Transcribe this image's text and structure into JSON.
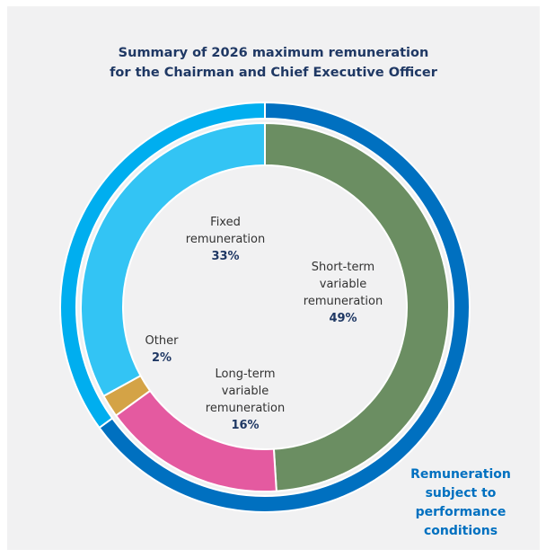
{
  "chart_data": {
    "type": "pie",
    "title_line1": "Summary of 2026 maximum remuneration",
    "title_line2": "for the Chairman and Chief Executive Officer",
    "inner_ring": [
      {
        "name_lines": [
          "Short-term",
          "variable",
          "remuneration"
        ],
        "value": 49,
        "pct_label": "49%",
        "color": "#6b8e62"
      },
      {
        "name_lines": [
          "Long-term",
          "variable",
          "remuneration"
        ],
        "value": 16,
        "pct_label": "16%",
        "color": "#e45aa0"
      },
      {
        "name_lines": [
          "Other"
        ],
        "value": 2,
        "pct_label": "2%",
        "color": "#d4a346"
      },
      {
        "name_lines": [
          "Fixed",
          "remuneration"
        ],
        "value": 33,
        "pct_label": "33%",
        "color": "#33c4f4"
      }
    ],
    "outer_ring": [
      {
        "value": 65,
        "color": "#0070c0",
        "label_lines": [
          "Remuneration",
          "subject to",
          "performance",
          "conditions"
        ]
      },
      {
        "value": 35,
        "color": "#00aeef",
        "label_lines": []
      }
    ]
  }
}
